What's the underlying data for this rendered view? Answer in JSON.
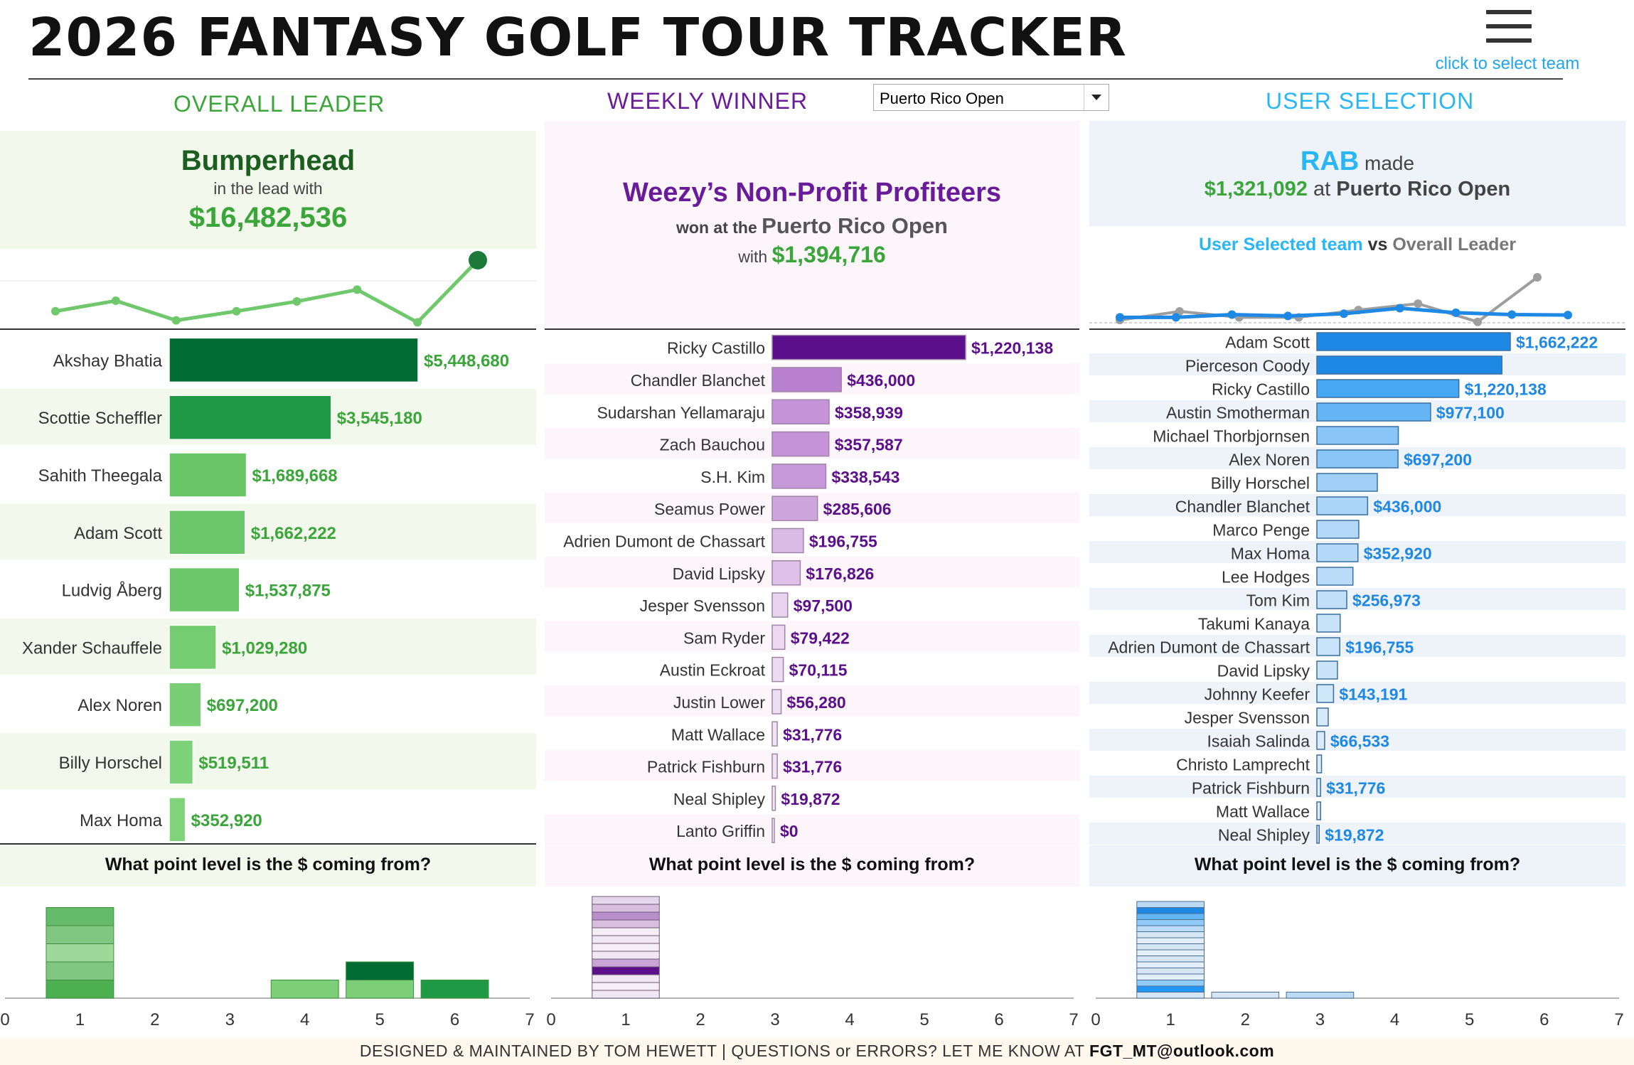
{
  "title": "2026 FANTASY GOLF TOUR TRACKER",
  "menu": {
    "icon": "hamburger-menu-icon",
    "caption": "click to select team"
  },
  "sections": {
    "overall": "OVERALL LEADER",
    "weekly": "WEEKLY WINNER",
    "user": "USER SELECTION"
  },
  "event_select": {
    "value": "Puerto Rico Open"
  },
  "overall": {
    "name": "Bumperhead",
    "subtitle": "in the lead with",
    "amount": "$16,482,536",
    "trend": [
      0.22,
      0.38,
      0.08,
      0.22,
      0.37,
      0.55,
      0.05,
      1.0
    ],
    "players": [
      {
        "name": "Akshay Bhatia",
        "label": "$5,448,680",
        "value": 5448680
      },
      {
        "name": "Scottie Scheffler",
        "label": "$3,545,180",
        "value": 3545180
      },
      {
        "name": "Sahith Theegala",
        "label": "$1,689,668",
        "value": 1689668
      },
      {
        "name": "Adam Scott",
        "label": "$1,662,222",
        "value": 1662222
      },
      {
        "name": "Ludvig Åberg",
        "label": "$1,537,875",
        "value": 1537875
      },
      {
        "name": "Xander Schauffele",
        "label": "$1,029,280",
        "value": 1029280
      },
      {
        "name": "Alex Noren",
        "label": "$697,200",
        "value": 697200
      },
      {
        "name": "Billy Horschel",
        "label": "$519,511",
        "value": 519511
      },
      {
        "name": "Max Homa",
        "label": "$352,920",
        "value": 352920
      }
    ],
    "question": "What point level is the $ coming from?",
    "point_levels": [
      {
        "level": 1,
        "segments": [
          {
            "color": "#4caf50",
            "value": 1
          },
          {
            "color": "#81c784",
            "value": 1
          },
          {
            "color": "#9ed89a",
            "value": 1
          },
          {
            "color": "#81c784",
            "value": 1
          },
          {
            "color": "#66bb6a",
            "value": 1
          }
        ]
      },
      {
        "level": 4,
        "segments": [
          {
            "color": "#7ccf78",
            "value": 1
          }
        ]
      },
      {
        "level": 5,
        "segments": [
          {
            "color": "#7ccf78",
            "value": 1
          },
          {
            "color": "#006b33",
            "value": 1
          }
        ]
      },
      {
        "level": 6,
        "segments": [
          {
            "color": "#1e9a46",
            "value": 1
          }
        ]
      }
    ]
  },
  "weekly": {
    "team": "Weezy’s Non-Profit Profiteers",
    "won_prefix": "won at the",
    "event": "Puerto Rico Open",
    "with_prefix": "with",
    "amount": "$1,394,716",
    "players": [
      {
        "name": "Ricky Castillo",
        "label": "$1,220,138",
        "value": 1220138
      },
      {
        "name": "Chandler Blanchet",
        "label": "$436,000",
        "value": 436000
      },
      {
        "name": "Sudarshan Yellamaraju",
        "label": "$358,939",
        "value": 358939
      },
      {
        "name": "Zach Bauchou",
        "label": "$357,587",
        "value": 357587
      },
      {
        "name": "S.H. Kim",
        "label": "$338,543",
        "value": 338543
      },
      {
        "name": "Seamus Power",
        "label": "$285,606",
        "value": 285606
      },
      {
        "name": "Adrien Dumont de Chassart",
        "label": "$196,755",
        "value": 196755
      },
      {
        "name": "David Lipsky",
        "label": "$176,826",
        "value": 176826
      },
      {
        "name": "Jesper Svensson",
        "label": "$97,500",
        "value": 97500
      },
      {
        "name": "Sam Ryder",
        "label": "$79,422",
        "value": 79422
      },
      {
        "name": "Austin Eckroat",
        "label": "$70,115",
        "value": 70115
      },
      {
        "name": "Justin Lower",
        "label": "$56,280",
        "value": 56280
      },
      {
        "name": "Matt Wallace",
        "label": "$31,776",
        "value": 31776
      },
      {
        "name": "Patrick Fishburn",
        "label": "$31,776",
        "value": 31776
      },
      {
        "name": "Neal Shipley",
        "label": "$19,872",
        "value": 19872
      },
      {
        "name": "Lanto Griffin",
        "label": "$0",
        "value": 0
      }
    ],
    "question": "What point level is the $ coming from?",
    "point_levels": [
      {
        "level": 1,
        "segments": [
          {
            "color": "#f1e6f3",
            "value": 1
          },
          {
            "color": "#f5eef6",
            "value": 1
          },
          {
            "color": "#f1e6f3",
            "value": 1
          },
          {
            "color": "#5c0f8b",
            "value": 1
          },
          {
            "color": "#c9a4d6",
            "value": 1
          },
          {
            "color": "#f1e6f3",
            "value": 1
          },
          {
            "color": "#f5eef6",
            "value": 1
          },
          {
            "color": "#f1e6f3",
            "value": 1
          },
          {
            "color": "#f5eef6",
            "value": 1
          },
          {
            "color": "#d8bfe0",
            "value": 1
          },
          {
            "color": "#b98fcb",
            "value": 1
          },
          {
            "color": "#d8bfe0",
            "value": 1
          },
          {
            "color": "#e6d6ec",
            "value": 1
          }
        ]
      }
    ]
  },
  "user": {
    "team": "RAB",
    "made": "made",
    "amount": "$1,321,092",
    "at": "at",
    "event": "Puerto Rico Open",
    "vs_selected": "User Selected team",
    "vs_word": "vs",
    "vs_leader": "Overall Leader",
    "trend_user": [
      0.12,
      0.12,
      0.18,
      0.15,
      0.2,
      0.32,
      0.22,
      0.18,
      0.17
    ],
    "trend_leader": [
      0.06,
      0.25,
      0.12,
      0.12,
      0.28,
      0.42,
      0.02,
      1.0
    ],
    "players": [
      {
        "name": "Adam Scott",
        "label": "$1,662,222",
        "value": 1662222
      },
      {
        "name": "Pierceson Coody",
        "label": "",
        "value": 1590000
      },
      {
        "name": "Ricky Castillo",
        "label": "$1,220,138",
        "value": 1220138
      },
      {
        "name": "Austin Smotherman",
        "label": "$977,100",
        "value": 977100
      },
      {
        "name": "Michael Thorbjornsen",
        "label": "",
        "value": 700000
      },
      {
        "name": "Alex Noren",
        "label": "$697,200",
        "value": 697200
      },
      {
        "name": "Billy Horschel",
        "label": "",
        "value": 519511
      },
      {
        "name": "Chandler Blanchet",
        "label": "$436,000",
        "value": 436000
      },
      {
        "name": "Marco Penge",
        "label": "",
        "value": 360000
      },
      {
        "name": "Max Homa",
        "label": "$352,920",
        "value": 352920
      },
      {
        "name": "Lee Hodges",
        "label": "",
        "value": 310000
      },
      {
        "name": "Tom Kim",
        "label": "$256,973",
        "value": 256973
      },
      {
        "name": "Takumi Kanaya",
        "label": "",
        "value": 200000
      },
      {
        "name": "Adrien Dumont de Chassart",
        "label": "$196,755",
        "value": 196755
      },
      {
        "name": "David Lipsky",
        "label": "",
        "value": 176826
      },
      {
        "name": "Johnny Keefer",
        "label": "$143,191",
        "value": 143191
      },
      {
        "name": "Jesper Svensson",
        "label": "",
        "value": 97500
      },
      {
        "name": "Isaiah Salinda",
        "label": "$66,533",
        "value": 66533
      },
      {
        "name": "Christo Lamprecht",
        "label": "",
        "value": 40000
      },
      {
        "name": "Patrick Fishburn",
        "label": "$31,776",
        "value": 31776
      },
      {
        "name": "Matt Wallace",
        "label": "",
        "value": 31776
      },
      {
        "name": "Neal Shipley",
        "label": "$19,872",
        "value": 19872
      }
    ],
    "question": "What point level is the $ coming from?",
    "point_levels": [
      {
        "level": 1,
        "segments": [
          {
            "color": "#d6e6f5",
            "value": 1
          },
          {
            "color": "#2196f3",
            "value": 1
          },
          {
            "color": "#90caf9",
            "value": 1
          },
          {
            "color": "#e3eef9",
            "value": 1
          },
          {
            "color": "#d6e6f5",
            "value": 1
          },
          {
            "color": "#e3eef9",
            "value": 1
          },
          {
            "color": "#d6e6f5",
            "value": 1
          },
          {
            "color": "#e3eef9",
            "value": 1
          },
          {
            "color": "#d6e6f5",
            "value": 1
          },
          {
            "color": "#e3eef9",
            "value": 1
          },
          {
            "color": "#d6e6f5",
            "value": 1
          },
          {
            "color": "#bbdaf5",
            "value": 1
          },
          {
            "color": "#90caf9",
            "value": 1
          },
          {
            "color": "#64b5f6",
            "value": 1
          },
          {
            "color": "#1e88e5",
            "value": 1
          },
          {
            "color": "#bbdaf5",
            "value": 1
          }
        ]
      },
      {
        "level": 2,
        "segments": [
          {
            "color": "#d6e6f5",
            "value": 1
          }
        ]
      },
      {
        "level": 3,
        "segments": [
          {
            "color": "#bbdaf5",
            "value": 1
          }
        ]
      }
    ]
  },
  "axis_ticks": [
    "0",
    "1",
    "2",
    "3",
    "4",
    "5",
    "6",
    "7"
  ],
  "footer": {
    "text": "DESIGNED & MAINTAINED BY TOM HEWETT  |  QUESTIONS or ERRORS? LET ME KNOW AT",
    "email": "FGT_MT@outlook.com"
  },
  "colors": {
    "green_dark": "#006b33",
    "green": "#3aa63a",
    "purple": "#6a1b9a",
    "blue": "#29b6f6"
  }
}
